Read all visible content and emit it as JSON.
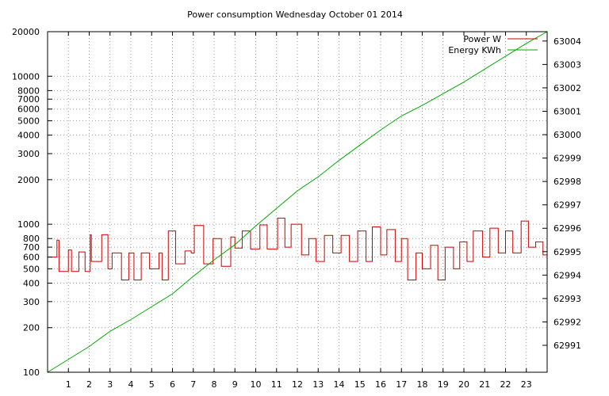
{
  "chart_data": {
    "type": "line",
    "title": "Power consumption Wednesday October 01 2014",
    "xlabel": "",
    "ylabel": "",
    "y2label": "",
    "grid": true,
    "legend_position": "top-right",
    "x_range": [
      0,
      24
    ],
    "x_ticks": [
      1,
      2,
      3,
      4,
      5,
      6,
      7,
      8,
      9,
      10,
      11,
      12,
      13,
      14,
      15,
      16,
      17,
      18,
      19,
      20,
      21,
      22,
      23
    ],
    "y_scale": "log",
    "y_range": [
      100,
      20000
    ],
    "y_ticks": [
      100,
      200,
      300,
      400,
      500,
      600,
      700,
      800,
      1000,
      2000,
      3000,
      4000,
      5000,
      6000,
      7000,
      8000,
      10000,
      20000
    ],
    "y2_range": [
      62989.85,
      63004.4
    ],
    "y2_ticks": [
      62991,
      62992,
      62993,
      62994,
      62995,
      62996,
      62997,
      62998,
      62999,
      63000,
      63001,
      63002,
      63003,
      63004
    ],
    "series": [
      {
        "name": "Power W",
        "axis": "y",
        "color": "#cc0000",
        "x": [
          0,
          0.45,
          0.55,
          1.0,
          1.15,
          1.5,
          1.8,
          2.05,
          2.1,
          2.6,
          2.9,
          3.1,
          3.55,
          3.9,
          4.15,
          4.5,
          4.9,
          5.35,
          5.5,
          5.8,
          6.15,
          6.6,
          6.9,
          7.05,
          7.5,
          7.95,
          8.35,
          8.8,
          9.0,
          9.35,
          9.75,
          10.2,
          10.55,
          11.05,
          11.4,
          11.7,
          12.2,
          12.55,
          12.9,
          13.3,
          13.7,
          14.1,
          14.5,
          14.9,
          15.3,
          15.6,
          16.0,
          16.3,
          16.7,
          17.0,
          17.3,
          17.7,
          18.0,
          18.4,
          18.75,
          19.1,
          19.5,
          19.8,
          20.15,
          20.45,
          20.9,
          21.25,
          21.65,
          22.0,
          22.35,
          22.75,
          23.1,
          23.45,
          23.8
        ],
        "y": [
          600,
          780,
          480,
          670,
          480,
          650,
          480,
          850,
          560,
          850,
          500,
          640,
          420,
          640,
          420,
          640,
          500,
          640,
          420,
          900,
          540,
          660,
          640,
          980,
          540,
          800,
          520,
          820,
          690,
          900,
          680,
          990,
          680,
          1100,
          700,
          1000,
          620,
          800,
          560,
          840,
          640,
          840,
          560,
          900,
          560,
          960,
          620,
          920,
          560,
          800,
          420,
          640,
          500,
          720,
          420,
          700,
          500,
          760,
          560,
          900,
          600,
          940,
          640,
          900,
          640,
          1050,
          700,
          760,
          620
        ]
      },
      {
        "name": "Energy KWh",
        "axis": "y2",
        "color": "#00aa00",
        "x": [
          0,
          1,
          2,
          3,
          4,
          5,
          6,
          7,
          8,
          9,
          10,
          11,
          12,
          13,
          14,
          15,
          16,
          17,
          18,
          19,
          20,
          21,
          22,
          23,
          24
        ],
        "y": [
          62989.85,
          62990.4,
          62990.95,
          62991.6,
          62992.1,
          62992.65,
          62993.2,
          62993.95,
          62994.65,
          62995.3,
          62996.1,
          62996.85,
          62997.6,
          62998.2,
          62998.9,
          62999.55,
          63000.2,
          63000.8,
          63001.25,
          63001.75,
          63002.25,
          63002.8,
          63003.35,
          63003.9,
          63004.4
        ]
      }
    ]
  }
}
